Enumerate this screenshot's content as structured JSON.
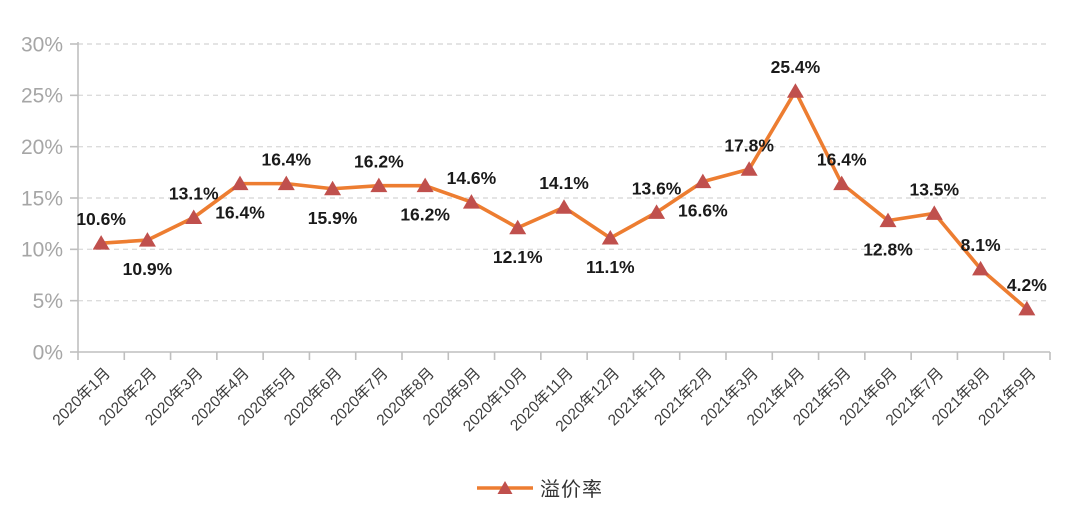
{
  "chart_data": {
    "type": "line",
    "title": "",
    "xlabel": "",
    "ylabel": "",
    "categories": [
      "2020年1月",
      "2020年2月",
      "2020年3月",
      "2020年4月",
      "2020年5月",
      "2020年6月",
      "2020年7月",
      "2020年8月",
      "2020年9月",
      "2020年10月",
      "2020年11月",
      "2020年12月",
      "2021年1月",
      "2021年2月",
      "2021年3月",
      "2021年4月",
      "2021年5月",
      "2021年6月",
      "2021年7月",
      "2021年8月",
      "2021年9月"
    ],
    "series": [
      {
        "name": "溢价率",
        "values": [
          10.6,
          10.9,
          13.1,
          16.4,
          16.4,
          15.9,
          16.2,
          16.2,
          14.6,
          12.1,
          14.1,
          11.1,
          13.6,
          16.6,
          17.8,
          25.4,
          16.4,
          12.8,
          13.5,
          8.1,
          4.2
        ],
        "data_labels": [
          "10.6%",
          "10.9%",
          "13.1%",
          "16.4%",
          "16.4%",
          "15.9%",
          "16.2%",
          "16.2%",
          "14.6%",
          "12.1%",
          "14.1%",
          "11.1%",
          "13.6%",
          "16.6%",
          "17.8%",
          "25.4%",
          "16.4%",
          "12.8%",
          "13.5%",
          "8.1%",
          "4.2%"
        ],
        "label_positions": [
          "above",
          "below",
          "above",
          "below",
          "above",
          "below",
          "above",
          "below",
          "above",
          "below",
          "above",
          "below",
          "above",
          "below",
          "above",
          "above",
          "above",
          "below",
          "above",
          "above",
          "above"
        ]
      }
    ],
    "ylim": [
      0,
      30
    ],
    "ytick_interval": 5,
    "ytick_labels": [
      "0%",
      "5%",
      "10%",
      "15%",
      "20%",
      "25%",
      "30%"
    ],
    "grid": "horizontal dashed",
    "legend": {
      "position": "bottom",
      "label": "溢价率"
    },
    "colors": {
      "line": "#ED7D31",
      "marker": "#C0504D",
      "grid": "#DCDCDC",
      "axis": "#BFBFBF",
      "ytick_text": "#A6A6A6",
      "xtick_text": "#3D3D3D",
      "data_label_text": "#1A1A1A",
      "legend_text": "#333333"
    }
  }
}
